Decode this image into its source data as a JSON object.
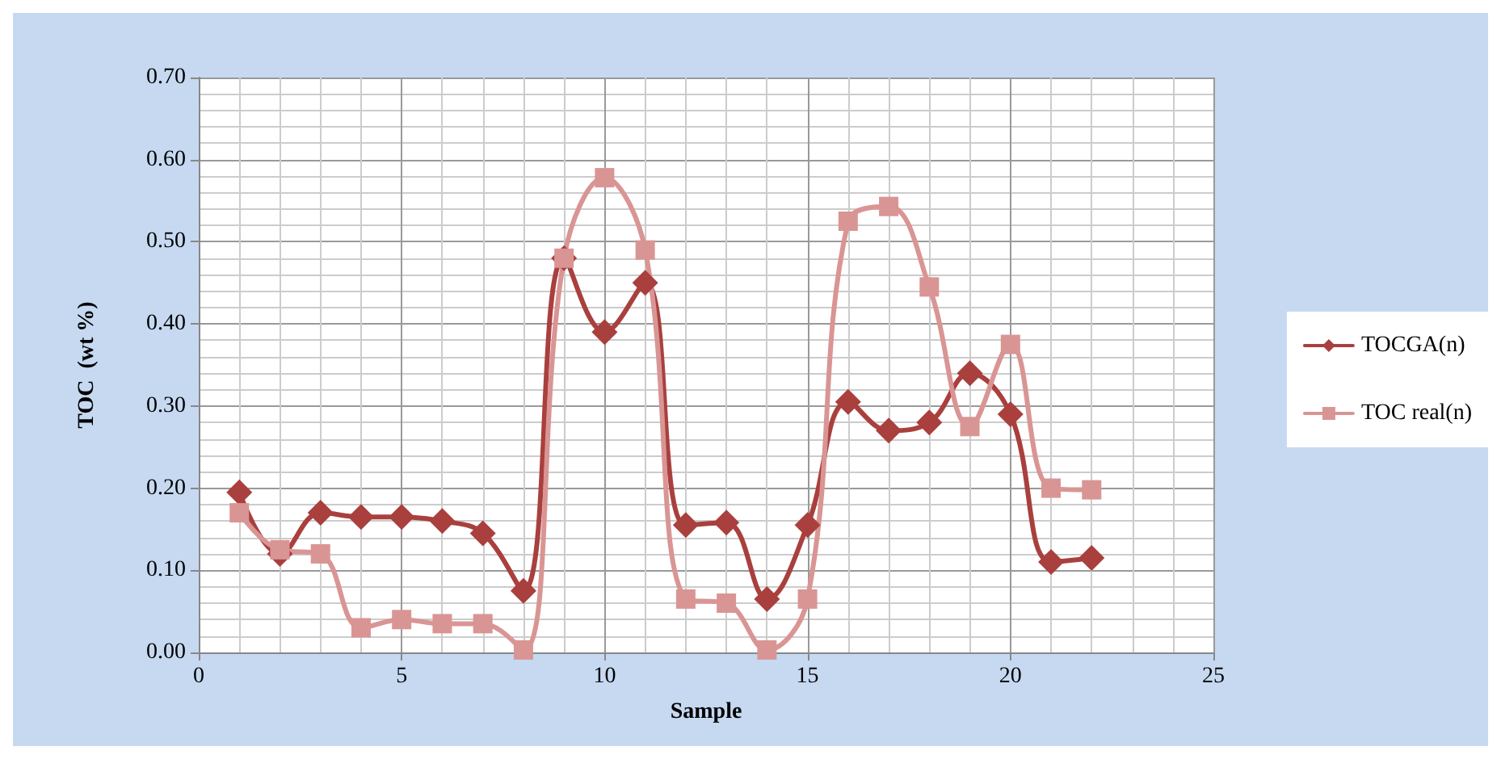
{
  "chart_data": {
    "type": "line",
    "xlabel": "Sample",
    "ylabel": "TOC  (wt %)",
    "xlim": [
      0,
      25
    ],
    "xticks": [
      0,
      5,
      10,
      15,
      20,
      25
    ],
    "ylim": [
      0,
      0.7
    ],
    "yticks": [
      {
        "value": 0,
        "label": "0.00"
      },
      {
        "value": 0.1,
        "label": "0.10"
      },
      {
        "value": 0.2,
        "label": "0.20"
      },
      {
        "value": 0.3,
        "label": "0.30"
      },
      {
        "value": 0.4,
        "label": "0.40"
      },
      {
        "value": 0.5,
        "label": "0.50"
      },
      {
        "value": 0.6,
        "label": "0.60"
      },
      {
        "value": 0.7,
        "label": "0.70"
      }
    ],
    "x": [
      1,
      2,
      3,
      4,
      5,
      6,
      7,
      8,
      9,
      10,
      11,
      12,
      13,
      14,
      15,
      16,
      17,
      18,
      19,
      20,
      21,
      22
    ],
    "series": [
      {
        "name": "TOCGA(n)",
        "color": "#a9403e",
        "marker": "diamond",
        "values": [
          0.195,
          0.12,
          0.17,
          0.165,
          0.165,
          0.16,
          0.145,
          0.075,
          0.48,
          0.39,
          0.45,
          0.155,
          0.158,
          0.065,
          0.155,
          0.305,
          0.27,
          0.28,
          0.34,
          0.29,
          0.11,
          0.115
        ]
      },
      {
        "name": "TOC real(n)",
        "color": "#d99594",
        "marker": "square",
        "values": [
          0.17,
          0.125,
          0.12,
          0.03,
          0.04,
          0.035,
          0.035,
          0.003,
          0.48,
          0.578,
          0.49,
          0.065,
          0.06,
          0.003,
          0.065,
          0.525,
          0.543,
          0.445,
          0.275,
          0.375,
          0.2,
          0.198
        ]
      }
    ],
    "grid": true,
    "legend": "right",
    "line_style": "solid"
  }
}
